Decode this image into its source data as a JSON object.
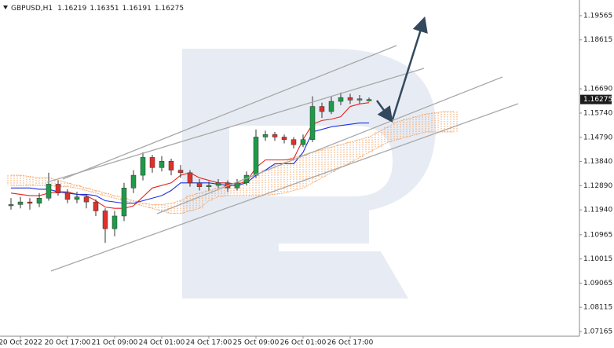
{
  "header": {
    "symbol": "GBPUSD,H1",
    "ohlc": [
      1.16219,
      1.16351,
      1.16191,
      1.16275
    ]
  },
  "chart_data": {
    "type": "candlestick",
    "categories": [
      null,
      "20 Oct 2022",
      null,
      null,
      null,
      null,
      "20 Oct 17:00",
      null,
      null,
      null,
      null,
      "21 Oct 09:00",
      null,
      null,
      null,
      null,
      "24 Oct 01:00",
      null,
      null,
      null,
      null,
      "24 Oct 17:00",
      null,
      null,
      null,
      null,
      "25 Oct 09:00",
      null,
      null,
      null,
      null,
      "26 Oct 01:00",
      null,
      null,
      null,
      null,
      "26 Oct 17:00",
      null,
      null,
      null,
      null,
      null,
      null,
      null,
      null,
      null,
      null,
      null
    ],
    "open": [
      1.121,
      1.1215,
      1.1225,
      1.122,
      1.124,
      1.1295,
      1.126,
      1.1235,
      1.1245,
      1.1225,
      1.119,
      1.112,
      1.117,
      1.128,
      1.133,
      1.14,
      1.136,
      1.1385,
      1.135,
      1.134,
      1.13,
      1.1285,
      1.129,
      1.13,
      1.128,
      1.13,
      1.133,
      1.148,
      1.149,
      1.148,
      1.147,
      1.145,
      1.147,
      1.16,
      1.158,
      1.162,
      1.1635,
      1.1625,
      1.16219,
      null,
      null,
      null,
      null,
      null,
      null,
      null,
      null,
      null
    ],
    "high": [
      1.124,
      1.1245,
      1.124,
      1.126,
      1.134,
      1.131,
      1.1275,
      1.1265,
      1.1255,
      1.1235,
      1.12,
      1.119,
      1.13,
      1.135,
      1.142,
      1.141,
      1.1405,
      1.1395,
      1.137,
      1.135,
      1.1315,
      1.1305,
      1.1315,
      1.131,
      1.1315,
      1.1345,
      1.151,
      1.1505,
      1.15,
      1.149,
      1.148,
      1.149,
      1.164,
      1.1615,
      1.164,
      1.1655,
      1.165,
      1.1645,
      1.16351,
      null,
      null,
      null,
      null,
      null,
      null,
      null,
      null,
      null
    ],
    "low": [
      1.1195,
      1.12,
      1.1195,
      1.1205,
      1.123,
      1.125,
      1.122,
      1.122,
      1.12,
      1.117,
      1.1065,
      1.109,
      1.115,
      1.126,
      1.131,
      1.134,
      1.1345,
      1.133,
      1.132,
      1.1285,
      1.127,
      1.127,
      1.128,
      1.1265,
      1.127,
      1.129,
      1.132,
      1.1465,
      1.1465,
      1.1455,
      1.1435,
      1.144,
      1.146,
      1.1555,
      1.157,
      1.1605,
      1.161,
      1.161,
      1.16191,
      null,
      null,
      null,
      null,
      null,
      null,
      null,
      null,
      null
    ],
    "close": [
      1.1215,
      1.1225,
      1.122,
      1.124,
      1.1295,
      1.126,
      1.1235,
      1.1245,
      1.1225,
      1.119,
      1.112,
      1.117,
      1.128,
      1.133,
      1.14,
      1.136,
      1.1385,
      1.135,
      1.134,
      1.13,
      1.1285,
      1.129,
      1.13,
      1.128,
      1.13,
      1.133,
      1.148,
      1.149,
      1.148,
      1.147,
      1.145,
      1.147,
      1.16,
      1.158,
      1.162,
      1.1635,
      1.1625,
      1.163,
      1.16275,
      null,
      null,
      null,
      null,
      null,
      null,
      null,
      null,
      null
    ],
    "up_color": "#1f9a48",
    "down_color": "#e0302a",
    "wick_color": "#333333",
    "series": [
      {
        "color": "#e8231c",
        "values": [
          1.126,
          1.1255,
          1.125,
          1.125,
          1.126,
          1.1265,
          1.1265,
          1.1255,
          1.125,
          1.123,
          1.1205,
          1.12,
          1.12,
          1.121,
          1.1245,
          1.128,
          1.129,
          1.13,
          1.133,
          1.134,
          1.132,
          1.131,
          1.13,
          1.13,
          1.1295,
          1.1305,
          1.136,
          1.139,
          1.139,
          1.139,
          1.1395,
          1.147,
          1.153,
          1.1545,
          1.155,
          1.156,
          1.16,
          1.161,
          1.1615,
          null,
          null,
          null,
          null,
          null,
          null,
          null,
          null,
          null
        ]
      },
      {
        "color": "#2030e0",
        "values": [
          1.128,
          1.128,
          1.128,
          1.1275,
          1.1275,
          1.1265,
          1.126,
          1.1255,
          1.1255,
          1.125,
          1.123,
          1.1225,
          1.122,
          1.122,
          1.123,
          1.124,
          1.125,
          1.127,
          1.13,
          1.13,
          1.13,
          1.13,
          1.1295,
          1.129,
          1.129,
          1.13,
          1.133,
          1.135,
          1.1375,
          1.1375,
          1.1375,
          1.142,
          1.15,
          1.151,
          1.152,
          1.1525,
          1.153,
          1.1535,
          1.1535,
          null,
          null,
          null,
          null,
          null,
          null,
          null,
          null,
          null
        ]
      }
    ],
    "cloud": {
      "color": "#f3a060",
      "upper": [
        1.133,
        1.133,
        1.1325,
        1.132,
        1.132,
        1.131,
        1.13,
        1.129,
        1.128,
        1.127,
        1.126,
        1.125,
        1.124,
        1.123,
        1.122,
        1.1215,
        1.1215,
        1.122,
        1.123,
        1.125,
        1.126,
        1.127,
        1.128,
        1.129,
        1.13,
        1.131,
        1.133,
        1.135,
        1.137,
        1.138,
        1.14,
        1.141,
        1.142,
        1.143,
        1.144,
        1.145,
        1.146,
        1.147,
        1.148,
        1.15,
        1.152,
        1.154,
        1.155,
        1.156,
        1.157,
        1.1575,
        1.158,
        1.158
      ],
      "lower": [
        1.129,
        1.129,
        1.129,
        1.129,
        1.129,
        1.1285,
        1.1285,
        1.128,
        1.127,
        1.126,
        1.125,
        1.124,
        1.123,
        1.122,
        1.121,
        1.12,
        1.119,
        1.118,
        1.118,
        1.119,
        1.12,
        1.123,
        1.1245,
        1.125,
        1.125,
        1.125,
        1.125,
        1.125,
        1.1255,
        1.126,
        1.127,
        1.128,
        1.13,
        1.132,
        1.134,
        1.136,
        1.138,
        1.14,
        1.142,
        1.144,
        1.146,
        1.147,
        1.148,
        1.149,
        1.15,
        1.15,
        1.15,
        1.15
      ]
    },
    "ylim": [
      1.0698,
      1.2018
    ],
    "yticks": [
      1.19565,
      1.18615,
      {
        "value": 1.1669,
        "label": "1.16690"
      },
      {
        "value": 1.1574,
        "label": "1.15740"
      },
      {
        "value": 1.1479,
        "label": "1.14790"
      },
      {
        "value": 1.1384,
        "label": "1.13840"
      },
      {
        "value": 1.1289,
        "label": "1.12890"
      },
      {
        "value": 1.1194,
        "label": "1.11940"
      },
      1.10965,
      1.10015,
      1.09065,
      1.08115,
      1.07165
    ]
  }
}
